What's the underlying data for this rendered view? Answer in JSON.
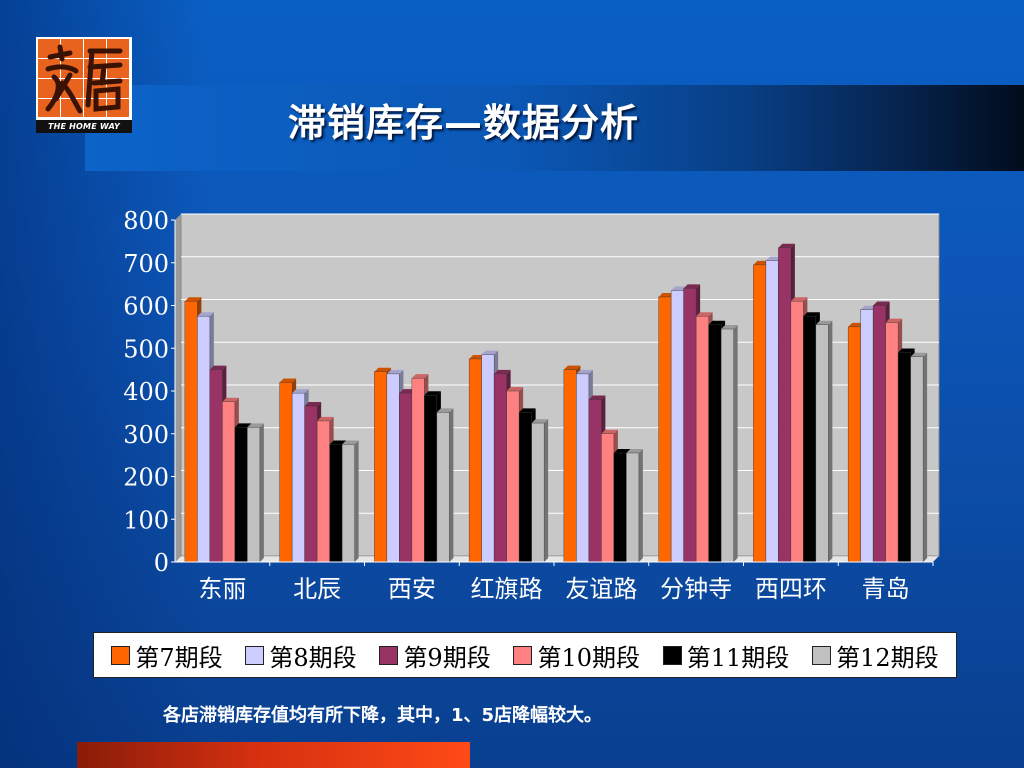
{
  "slide": {
    "title": "滞销库存—数据分析",
    "caption": "各店滞销库存值均有所下降，其中，1、5店降幅较大。"
  },
  "logo": {
    "text": "THE HOME WAY",
    "mark_text": "家居"
  },
  "colors": {
    "background": "#0b55b5",
    "plot_area": "#c8c8c8",
    "series": [
      "#ff6600",
      "#ccccff",
      "#993366",
      "#ff8080",
      "#000000",
      "#c0c0c0"
    ]
  },
  "chart_data": {
    "type": "bar",
    "title": "",
    "xlabel": "",
    "ylabel": "",
    "ylim": [
      0,
      800
    ],
    "yticks": [
      0,
      100,
      200,
      300,
      400,
      500,
      600,
      700,
      800
    ],
    "grid": true,
    "legend_position": "bottom",
    "categories": [
      "东丽",
      "北辰",
      "西安",
      "红旗路",
      "友谊路",
      "分钟寺",
      "西四环",
      "青岛"
    ],
    "series": [
      {
        "name": "第7期段",
        "color": "#ff6600",
        "values": [
          610,
          420,
          445,
          475,
          450,
          620,
          695,
          550
        ]
      },
      {
        "name": "第8期段",
        "color": "#ccccff",
        "values": [
          575,
          395,
          440,
          485,
          440,
          635,
          705,
          590
        ]
      },
      {
        "name": "第9期段",
        "color": "#993366",
        "values": [
          450,
          365,
          395,
          440,
          380,
          640,
          735,
          600
        ]
      },
      {
        "name": "第10期段",
        "color": "#ff8080",
        "values": [
          375,
          330,
          430,
          400,
          300,
          575,
          610,
          560
        ]
      },
      {
        "name": "第11期段",
        "color": "#000000",
        "values": [
          315,
          275,
          390,
          350,
          255,
          555,
          575,
          490
        ]
      },
      {
        "name": "第12期段",
        "color": "#c0c0c0",
        "values": [
          315,
          275,
          350,
          325,
          255,
          545,
          555,
          480
        ]
      }
    ]
  }
}
